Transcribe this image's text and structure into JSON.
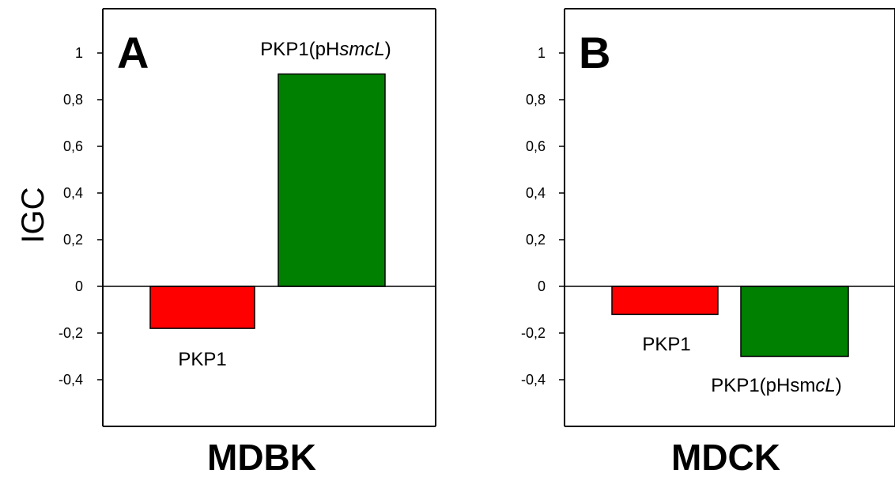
{
  "shared_ylabel": "IGC",
  "chart_data": [
    {
      "type": "bar",
      "panel_letter": "A",
      "xlabel": "MDBK",
      "ylabel": "IGC",
      "ylim": [
        -0.6,
        1.2
      ],
      "yticks": [
        -0.4,
        -0.2,
        0,
        0.2,
        0.4,
        0.6,
        0.8,
        1
      ],
      "ytick_labels": [
        "-0,4",
        "-0,2",
        "0",
        "0,2",
        "0,4",
        "0,6",
        "0,8",
        "1"
      ],
      "categories": [
        "PKP1",
        "PKP1(pHsmcL)"
      ],
      "values": [
        -0.18,
        0.91
      ],
      "colors": [
        "#ff0000",
        "#008000"
      ],
      "bar_labels": [
        {
          "plain": "PKP1",
          "italic": "",
          "tail": ""
        },
        {
          "plain": "PKP1(pH",
          "italic": "smcL",
          "tail": ")"
        }
      ]
    },
    {
      "type": "bar",
      "panel_letter": "B",
      "xlabel": "MDCK",
      "ylabel": "",
      "ylim": [
        -0.6,
        1.2
      ],
      "yticks": [
        -0.4,
        -0.2,
        0,
        0.2,
        0.4,
        0.6,
        0.8,
        1
      ],
      "ytick_labels": [
        "-0,4",
        "-0,2",
        "0",
        "0,2",
        "0,4",
        "0,6",
        "0,8",
        "1"
      ],
      "categories": [
        "PKP1",
        "PKP1(pHsmcL)"
      ],
      "values": [
        -0.12,
        -0.3
      ],
      "colors": [
        "#ff0000",
        "#008000"
      ],
      "bar_labels": [
        {
          "plain": "PKP1",
          "italic": "",
          "tail": ""
        },
        {
          "plain": "PKP1(pHsm",
          "italic": "cL",
          "tail": ")"
        }
      ]
    }
  ]
}
